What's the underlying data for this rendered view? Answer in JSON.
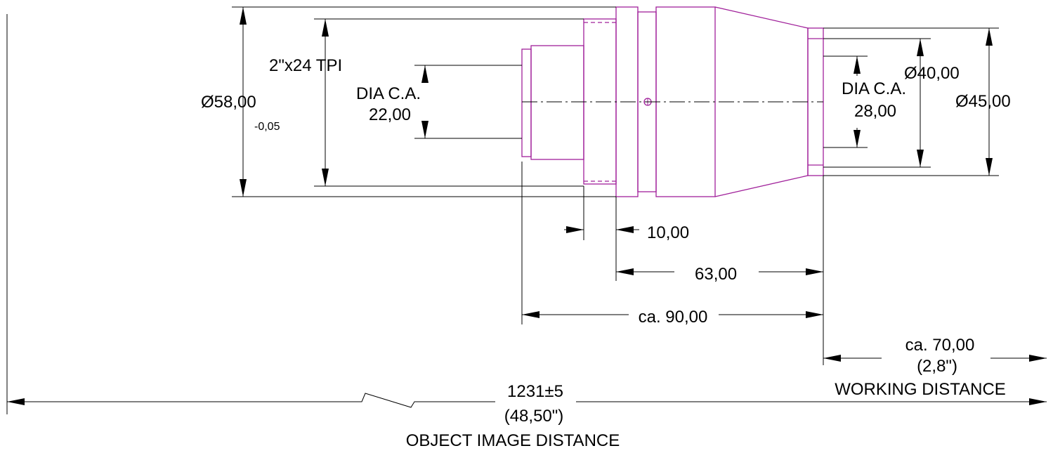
{
  "drawing": {
    "colors": {
      "part_outline": "#a0209a",
      "dimension_line": "#000000",
      "background": "#ffffff"
    },
    "labels": {
      "thread": "2\"x24 TPI",
      "dia_outer": "Ø58,00",
      "dia_outer_tol": "-0,05",
      "ca_left_1": "DIA C.A.",
      "ca_left_2": "22,00",
      "ca_right_1": "DIA C.A.",
      "ca_right_2": "28,00",
      "dia_40": "Ø40,00",
      "dia_45": "Ø45,00",
      "len_10": "10,00",
      "len_63": "63,00",
      "len_90": "ca. 90,00",
      "wd_value": "ca. 70,00",
      "wd_inch": "(2,8\")",
      "wd_title": "WORKING DISTANCE",
      "oid_value": "1231±5",
      "oid_inch": "(48,50\")",
      "oid_title": "OBJECT IMAGE DISTANCE"
    }
  }
}
